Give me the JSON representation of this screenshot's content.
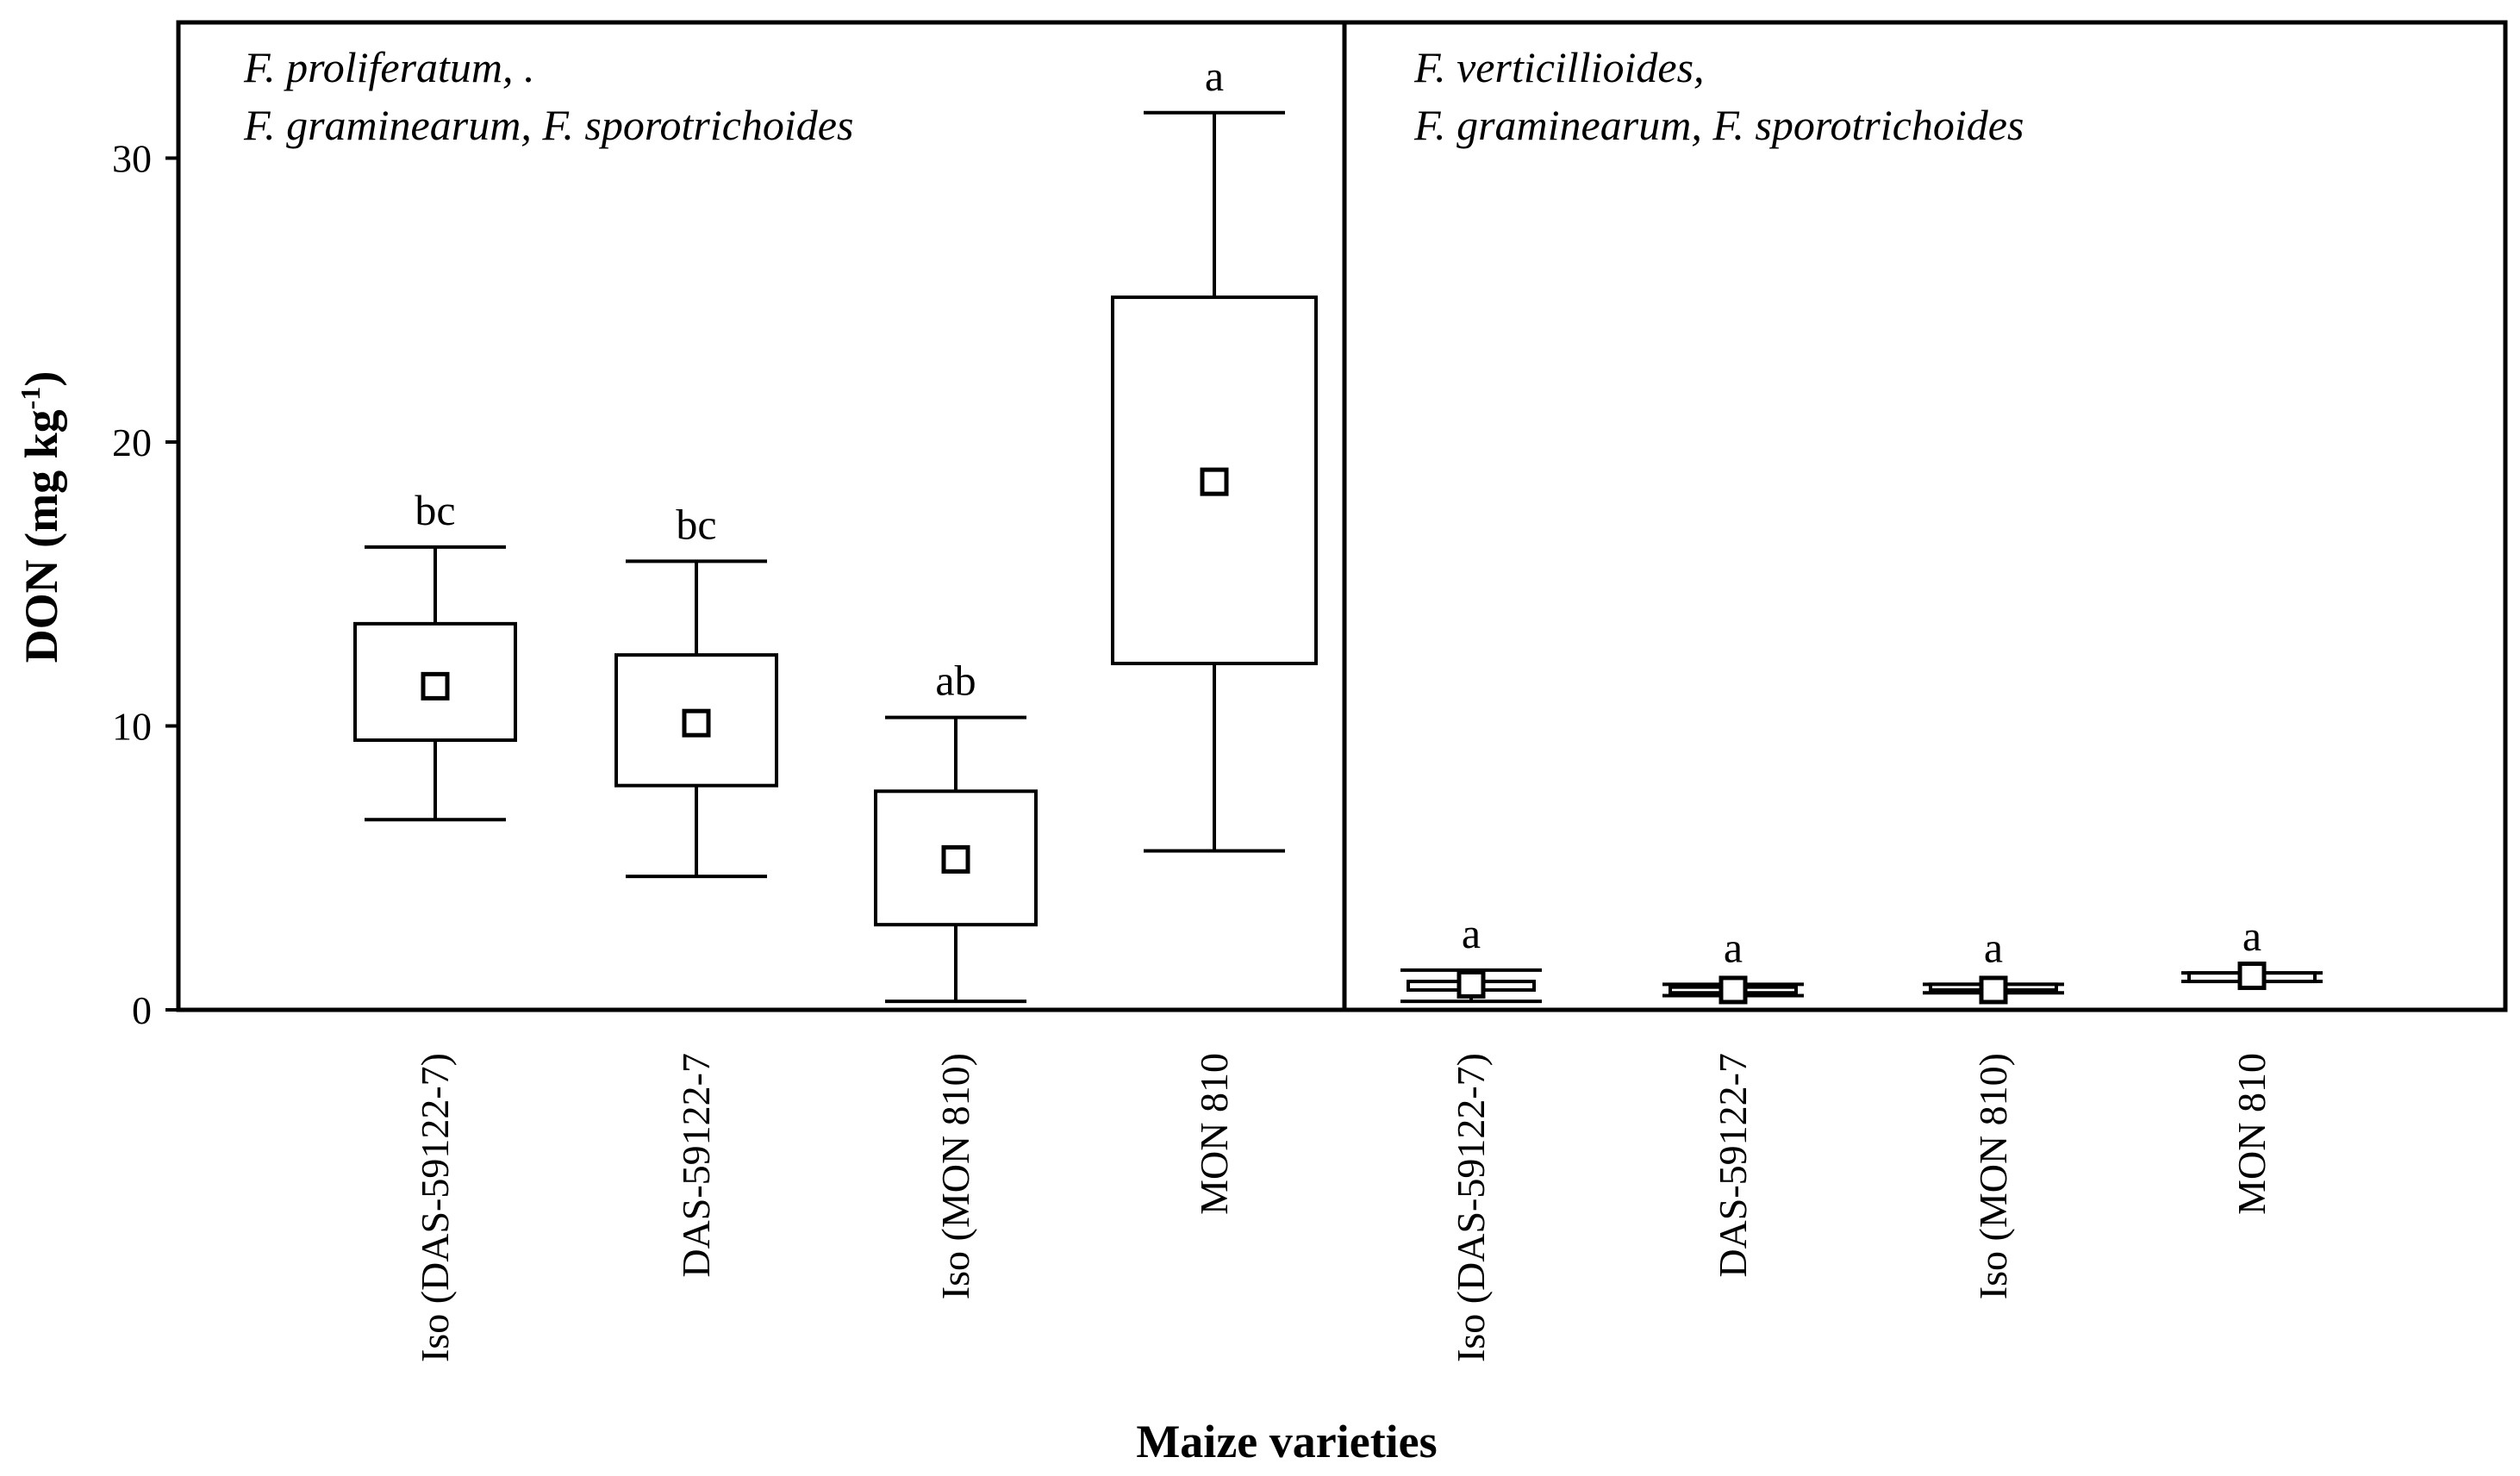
{
  "chart_data": {
    "type": "boxplot",
    "ylabel": {
      "main": "DON  (mg kg",
      "superscript": "-1",
      "close": ")"
    },
    "xlabel": "Maize varieties",
    "ylim": [
      0,
      35
    ],
    "yticks": [
      0,
      10,
      20,
      30
    ],
    "panels": [
      {
        "title": [
          "F. proliferatum, .",
          "F. graminearum, F. sporotrichoides"
        ],
        "categories": [
          "Iso (DAS-59122-7)",
          "DAS-59122-7",
          "Iso (MON 810)",
          "MON 810"
        ],
        "boxes": [
          {
            "mean": 11.4,
            "q1": 9.5,
            "q3": 13.6,
            "whisker_low": 6.7,
            "whisker_high": 16.3,
            "group": "bc"
          },
          {
            "mean": 10.1,
            "q1": 7.9,
            "q3": 12.5,
            "whisker_low": 4.7,
            "whisker_high": 15.8,
            "group": "bc"
          },
          {
            "mean": 5.3,
            "q1": 3.0,
            "q3": 7.7,
            "whisker_low": 0.3,
            "whisker_high": 10.3,
            "group": "ab"
          },
          {
            "mean": 18.6,
            "q1": 12.2,
            "q3": 25.1,
            "whisker_low": 5.6,
            "whisker_high": 31.6,
            "group": "a"
          }
        ]
      },
      {
        "title": [
          "F. verticillioides,",
          "F. graminearum, F. sporotrichoides"
        ],
        "categories": [
          "Iso (DAS-59122-7)",
          "DAS-59122-7",
          "Iso (MON 810)",
          "MON 810"
        ],
        "boxes": [
          {
            "mean": 0.9,
            "q1": 0.7,
            "q3": 1.0,
            "whisker_low": 0.3,
            "whisker_high": 1.4,
            "group": "a"
          },
          {
            "mean": 0.7,
            "q1": 0.6,
            "q3": 0.8,
            "whisker_low": 0.5,
            "whisker_high": 0.9,
            "group": "a"
          },
          {
            "mean": 0.7,
            "q1": 0.7,
            "q3": 0.9,
            "whisker_low": 0.6,
            "whisker_high": 0.9,
            "group": "a"
          },
          {
            "mean": 1.2,
            "q1": 1.0,
            "q3": 1.3,
            "whisker_low": 1.0,
            "whisker_high": 1.3,
            "group": "a"
          }
        ]
      }
    ]
  }
}
